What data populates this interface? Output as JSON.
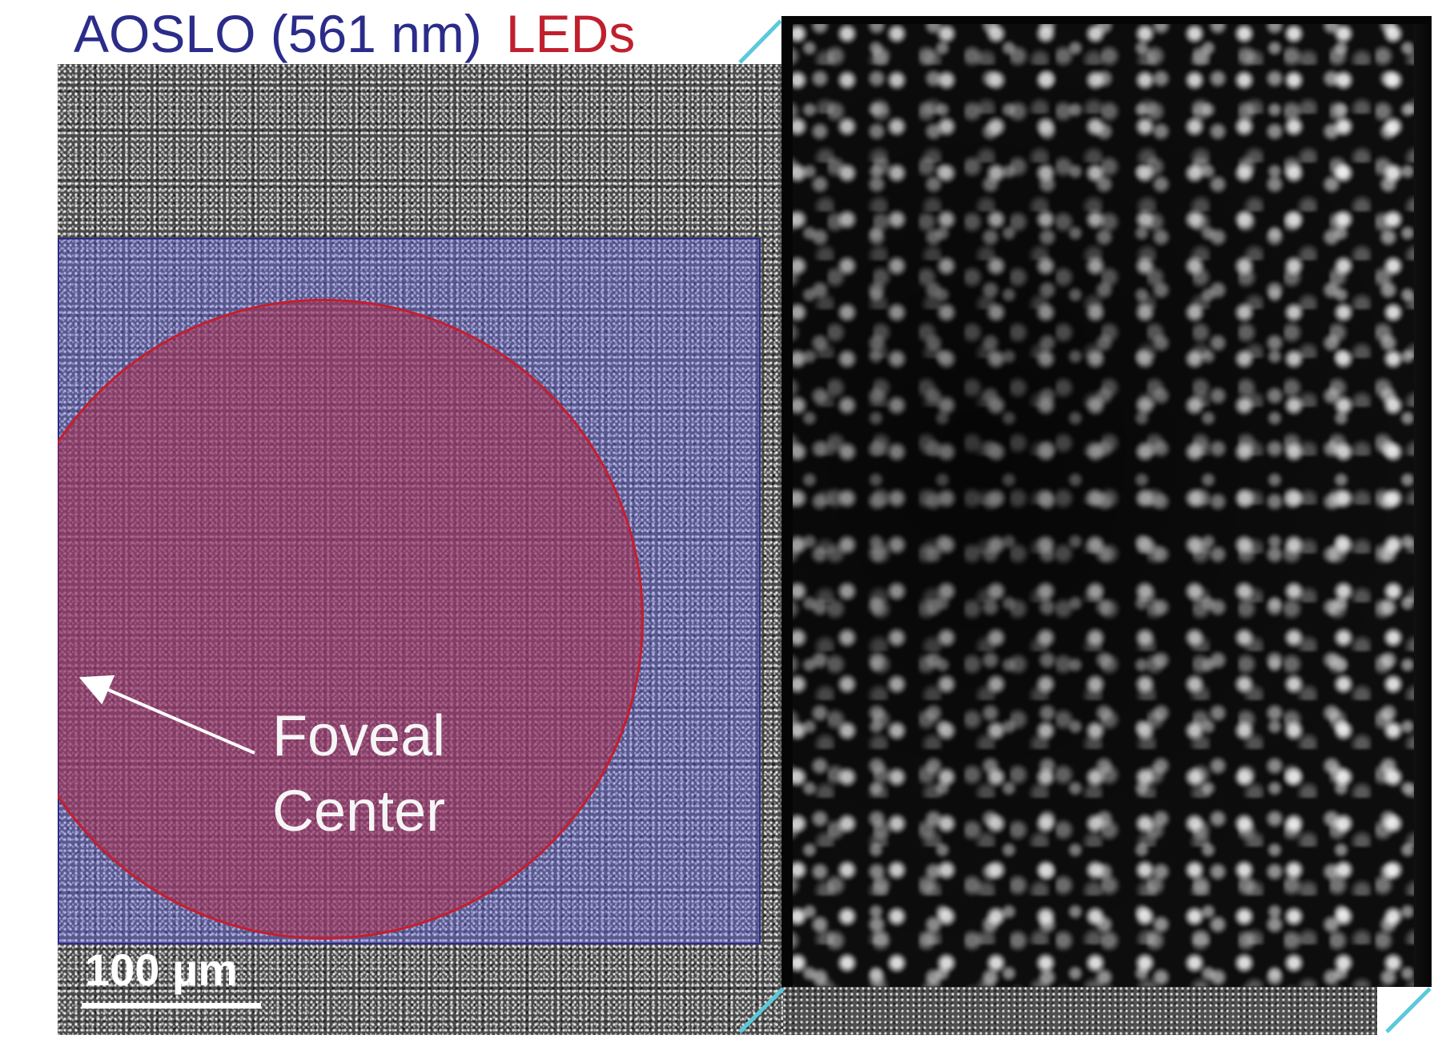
{
  "title": {
    "aoslo": "AOSLO (561 nm)",
    "leds": "LEDs"
  },
  "colors": {
    "aoslo_title": "#2b2c8a",
    "leds_title": "#c0202e",
    "blue_region": "#6e6eeb",
    "red_region": "#c41e2e",
    "callout_lines": "#5bc8dc"
  },
  "annotation": {
    "label": "Foveal\nCenter"
  },
  "scale_bar": {
    "label": "100 µm"
  }
}
